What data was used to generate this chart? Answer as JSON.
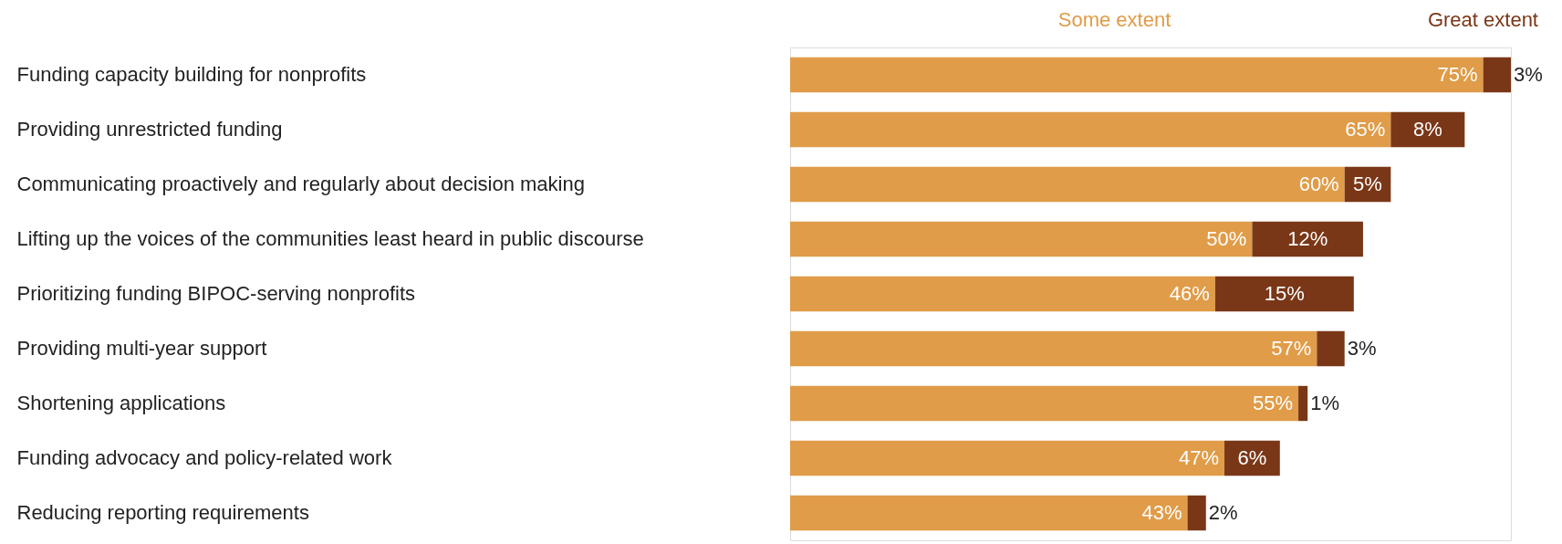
{
  "chart_data": {
    "type": "bar",
    "orientation": "horizontal",
    "stacked": true,
    "legend": "top",
    "categories": [
      "Funding capacity building for nonprofits",
      "Providing unrestricted funding",
      "Communicating proactively and regularly about decision making",
      "Lifting up the voices of the communities least heard in public discourse",
      "Prioritizing funding BIPOC-serving nonprofits",
      "Providing multi-year support",
      "Shortening applications",
      "Funding advocacy and policy-related work",
      "Reducing reporting requirements"
    ],
    "series": [
      {
        "name": "Some extent",
        "color": "#e09c48",
        "values": [
          75,
          65,
          60,
          50,
          46,
          57,
          55,
          47,
          43
        ],
        "value_labels": [
          "75%",
          "65%",
          "60%",
          "50%",
          "46%",
          "57%",
          "55%",
          "47%",
          "43%"
        ]
      },
      {
        "name": "Great extent",
        "color": "#7a3717",
        "values": [
          3,
          8,
          5,
          12,
          15,
          3,
          1,
          6,
          2
        ],
        "value_labels": [
          "3%",
          "8%",
          "5%",
          "12%",
          "15%",
          "3%",
          "1%",
          "6%",
          "2%"
        ]
      }
    ]
  }
}
